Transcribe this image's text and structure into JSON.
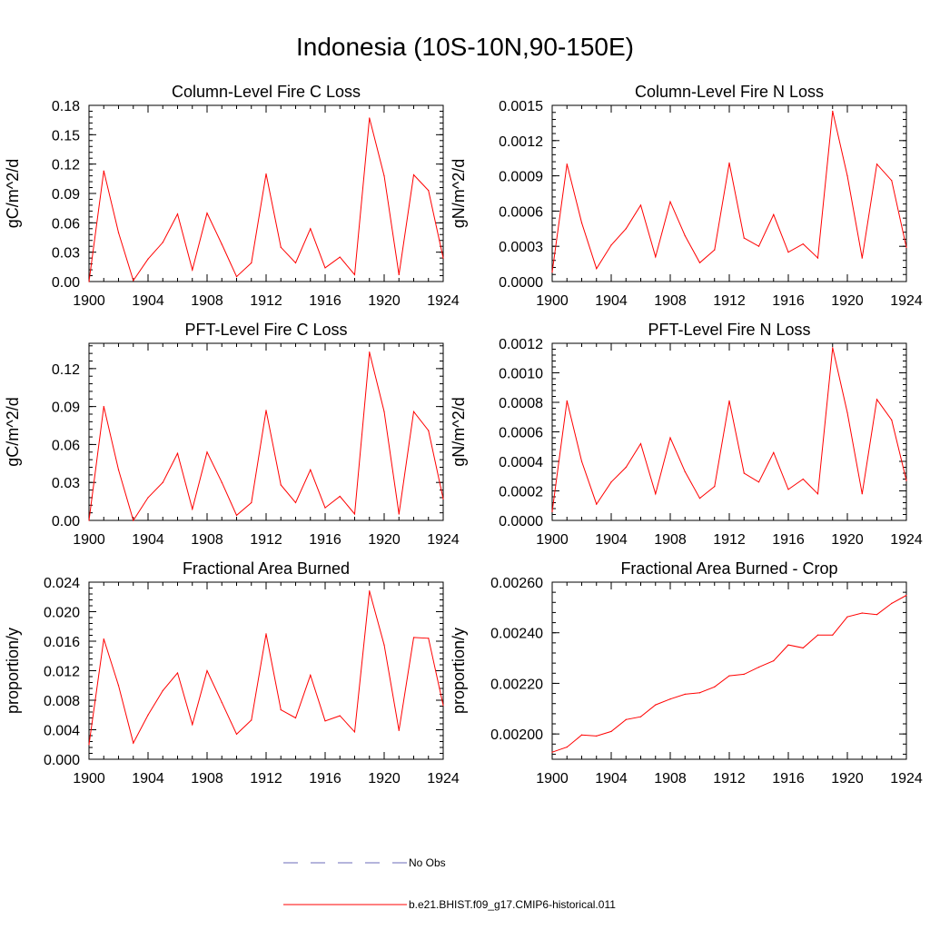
{
  "title": "Indonesia (10S-10N,90-150E)",
  "colors": {
    "model_line": "#ff0000",
    "obs_line": "#6b6bb8",
    "axis": "#000000"
  },
  "chart_data": [
    {
      "type": "line",
      "title": "Column-Level Fire C Loss",
      "ylabel": "gC/m^2/d",
      "xlim": [
        1900,
        1924
      ],
      "ylim": [
        0,
        0.18
      ],
      "xticks": [
        "1900",
        "1904",
        "1908",
        "1912",
        "1916",
        "1920",
        "1924"
      ],
      "yticks": [
        "0.00",
        "0.03",
        "0.06",
        "0.09",
        "0.12",
        "0.15",
        "0.18"
      ],
      "x": [
        1900,
        1901,
        1902,
        1903,
        1904,
        1905,
        1906,
        1907,
        1908,
        1909,
        1910,
        1911,
        1912,
        1913,
        1914,
        1915,
        1916,
        1917,
        1918,
        1919,
        1920,
        1921,
        1922,
        1923,
        1924
      ],
      "series": [
        {
          "name": "b.e21.BHIST.f09_g17.CMIP6-historical.011",
          "values": [
            0.0,
            0.113,
            0.05,
            0.001,
            0.023,
            0.04,
            0.069,
            0.012,
            0.07,
            0.038,
            0.005,
            0.019,
            0.11,
            0.035,
            0.019,
            0.054,
            0.014,
            0.025,
            0.007,
            0.167,
            0.108,
            0.007,
            0.109,
            0.093,
            0.024
          ]
        }
      ]
    },
    {
      "type": "line",
      "title": "Column-Level Fire N Loss",
      "ylabel": "gN/m^2/d",
      "xlim": [
        1900,
        1924
      ],
      "ylim": [
        0,
        0.0015
      ],
      "xticks": [
        "1900",
        "1904",
        "1908",
        "1912",
        "1916",
        "1920",
        "1924"
      ],
      "yticks": [
        "0.0000",
        "0.0003",
        "0.0006",
        "0.0009",
        "0.0012",
        "0.0015"
      ],
      "x": [
        1900,
        1901,
        1902,
        1903,
        1904,
        1905,
        1906,
        1907,
        1908,
        1909,
        1910,
        1911,
        1912,
        1913,
        1914,
        1915,
        1916,
        1917,
        1918,
        1919,
        1920,
        1921,
        1922,
        1923,
        1924
      ],
      "series": [
        {
          "name": "b.e21.BHIST.f09_g17.CMIP6-historical.011",
          "values": [
            8e-05,
            0.001,
            0.0005,
            0.00011,
            0.00031,
            0.00045,
            0.00065,
            0.00021,
            0.00068,
            0.00039,
            0.00016,
            0.00027,
            0.00101,
            0.00037,
            0.0003,
            0.00057,
            0.00025,
            0.00032,
            0.0002,
            0.00145,
            0.0009,
            0.0002,
            0.001,
            0.00086,
            0.00029
          ]
        }
      ]
    },
    {
      "type": "line",
      "title": "PFT-Level Fire C Loss",
      "ylabel": "gC/m^2/d",
      "xlim": [
        1900,
        1924
      ],
      "ylim": [
        0,
        0.14
      ],
      "xticks": [
        "1900",
        "1904",
        "1908",
        "1912",
        "1916",
        "1920",
        "1924"
      ],
      "yticks": [
        "0.00",
        "0.03",
        "0.06",
        "0.09",
        "0.12"
      ],
      "x": [
        1900,
        1901,
        1902,
        1903,
        1904,
        1905,
        1906,
        1907,
        1908,
        1909,
        1910,
        1911,
        1912,
        1913,
        1914,
        1915,
        1916,
        1917,
        1918,
        1919,
        1920,
        1921,
        1922,
        1923,
        1924
      ],
      "series": [
        {
          "name": "b.e21.BHIST.f09_g17.CMIP6-historical.011",
          "values": [
            0.0,
            0.09,
            0.04,
            0.0,
            0.018,
            0.03,
            0.053,
            0.009,
            0.054,
            0.03,
            0.004,
            0.014,
            0.087,
            0.028,
            0.014,
            0.04,
            0.01,
            0.019,
            0.005,
            0.133,
            0.086,
            0.005,
            0.086,
            0.071,
            0.017
          ]
        }
      ]
    },
    {
      "type": "line",
      "title": "PFT-Level Fire N Loss",
      "ylabel": "gN/m^2/d",
      "xlim": [
        1900,
        1924
      ],
      "ylim": [
        0,
        0.0012
      ],
      "xticks": [
        "1900",
        "1904",
        "1908",
        "1912",
        "1916",
        "1920",
        "1924"
      ],
      "yticks": [
        "0.0000",
        "0.0002",
        "0.0004",
        "0.0006",
        "0.0008",
        "0.0010",
        "0.0012"
      ],
      "x": [
        1900,
        1901,
        1902,
        1903,
        1904,
        1905,
        1906,
        1907,
        1908,
        1909,
        1910,
        1911,
        1912,
        1913,
        1914,
        1915,
        1916,
        1917,
        1918,
        1919,
        1920,
        1921,
        1922,
        1923,
        1924
      ],
      "series": [
        {
          "name": "b.e21.BHIST.f09_g17.CMIP6-historical.011",
          "values": [
            6e-05,
            0.00081,
            0.0004,
            0.00011,
            0.00026,
            0.00036,
            0.00052,
            0.00018,
            0.00056,
            0.00033,
            0.00015,
            0.00023,
            0.00081,
            0.00032,
            0.00026,
            0.00046,
            0.00021,
            0.00028,
            0.00018,
            0.00117,
            0.00073,
            0.00018,
            0.00082,
            0.00068,
            0.00027
          ]
        }
      ]
    },
    {
      "type": "line",
      "title": "Fractional Area Burned",
      "ylabel": "proportion/y",
      "xlim": [
        1900,
        1924
      ],
      "ylim": [
        0,
        0.024
      ],
      "xticks": [
        "1900",
        "1904",
        "1908",
        "1912",
        "1916",
        "1920",
        "1924"
      ],
      "yticks": [
        "0.000",
        "0.004",
        "0.008",
        "0.012",
        "0.016",
        "0.020",
        "0.024"
      ],
      "x": [
        1900,
        1901,
        1902,
        1903,
        1904,
        1905,
        1906,
        1907,
        1908,
        1909,
        1910,
        1911,
        1912,
        1913,
        1914,
        1915,
        1916,
        1917,
        1918,
        1919,
        1920,
        1921,
        1922,
        1923,
        1924
      ],
      "series": [
        {
          "name": "b.e21.BHIST.f09_g17.CMIP6-historical.011",
          "values": [
            0.002,
            0.0163,
            0.01,
            0.0022,
            0.006,
            0.0093,
            0.0117,
            0.0047,
            0.012,
            0.0077,
            0.0034,
            0.0053,
            0.017,
            0.0067,
            0.0056,
            0.0114,
            0.0052,
            0.0059,
            0.0037,
            0.0228,
            0.0155,
            0.0039,
            0.0165,
            0.0164,
            0.0073
          ]
        }
      ]
    },
    {
      "type": "line",
      "title": "Fractional Area Burned - Crop",
      "ylabel": "proportion/y",
      "xlim": [
        1900,
        1924
      ],
      "ylim": [
        0.0019,
        0.0026
      ],
      "xticks": [
        "1900",
        "1904",
        "1908",
        "1912",
        "1916",
        "1920",
        "1924"
      ],
      "yticks": [
        "0.00200",
        "0.00220",
        "0.00240",
        "0.00260"
      ],
      "x": [
        1900,
        1901,
        1902,
        1903,
        1904,
        1905,
        1906,
        1907,
        1908,
        1909,
        1910,
        1911,
        1912,
        1913,
        1914,
        1915,
        1916,
        1917,
        1918,
        1919,
        1920,
        1921,
        1922,
        1923,
        1924
      ],
      "series": [
        {
          "name": "b.e21.BHIST.f09_g17.CMIP6-historical.011",
          "values": [
            0.001928,
            0.001948,
            0.001996,
            0.001992,
            0.00201,
            0.002057,
            0.002068,
            0.002115,
            0.002138,
            0.002157,
            0.002163,
            0.002186,
            0.00223,
            0.002236,
            0.002264,
            0.002289,
            0.002352,
            0.00234,
            0.002391,
            0.002391,
            0.002463,
            0.002478,
            0.002472,
            0.002516,
            0.002548
          ]
        }
      ]
    }
  ],
  "legend": [
    {
      "label": "No Obs",
      "style": "dashed"
    },
    {
      "label": "b.e21.BHIST.f09_g17.CMIP6-historical.011",
      "style": "solid"
    }
  ]
}
